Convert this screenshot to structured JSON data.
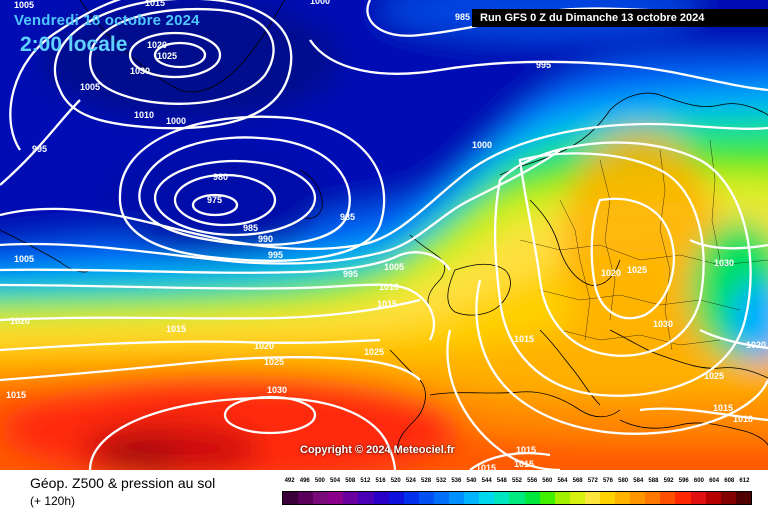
{
  "header": {
    "date": "Vendredi 18 octobre 2024",
    "local_time": "2:00 locale",
    "run_info": "Run GFS 0 Z du Dimanche 13 octobre 2024"
  },
  "copyright": "Copyright © 2024 Meteociel.fr",
  "legend": {
    "title": "Géop. Z500 & pression au sol",
    "subtitle": "(+ 120h)",
    "scale_values": [
      "492",
      "496",
      "500",
      "504",
      "508",
      "512",
      "516",
      "520",
      "524",
      "528",
      "532",
      "536",
      "540",
      "544",
      "548",
      "552",
      "556",
      "560",
      "564",
      "568",
      "572",
      "576",
      "580",
      "584",
      "588",
      "592",
      "596",
      "600",
      "604",
      "608",
      "612"
    ],
    "scale_colors": [
      "#3a003a",
      "#5a005a",
      "#7a0a7a",
      "#8a008a",
      "#6a00a0",
      "#4a00b4",
      "#2a00c8",
      "#1010dc",
      "#0030ec",
      "#0050f4",
      "#0070fa",
      "#0090ff",
      "#00b4ff",
      "#00d8ee",
      "#00e6c0",
      "#00ea80",
      "#00e83c",
      "#40f000",
      "#a0f000",
      "#d8f010",
      "#ffe63c",
      "#ffd200",
      "#ffb400",
      "#ff9600",
      "#ff7800",
      "#ff5000",
      "#ff2800",
      "#e01010",
      "#b40000",
      "#820000",
      "#500000"
    ]
  },
  "isobar_labels": [
    {
      "text": "1005"
    },
    {
      "text": "1015"
    },
    {
      "text": "1000"
    },
    {
      "text": "1020"
    },
    {
      "text": "1025"
    },
    {
      "text": "1030"
    },
    {
      "text": "1005"
    },
    {
      "text": "1010"
    },
    {
      "text": "1000"
    },
    {
      "text": "995"
    },
    {
      "text": "980"
    },
    {
      "text": "975"
    },
    {
      "text": "985"
    },
    {
      "text": "985"
    },
    {
      "text": "990"
    },
    {
      "text": "995"
    },
    {
      "text": "985"
    },
    {
      "text": "995"
    },
    {
      "text": "1000"
    },
    {
      "text": "1005"
    },
    {
      "text": "995"
    },
    {
      "text": "1010"
    },
    {
      "text": "1015"
    },
    {
      "text": "1005"
    },
    {
      "text": "1020"
    },
    {
      "text": "1015"
    },
    {
      "text": "1020"
    },
    {
      "text": "1025"
    },
    {
      "text": "1025"
    },
    {
      "text": "1015"
    },
    {
      "text": "1030"
    },
    {
      "text": "1015"
    },
    {
      "text": "1020"
    },
    {
      "text": "1025"
    },
    {
      "text": "1030"
    },
    {
      "text": "1030"
    },
    {
      "text": "1020"
    },
    {
      "text": "1025"
    },
    {
      "text": "1015"
    },
    {
      "text": "1010"
    },
    {
      "text": "1015"
    },
    {
      "text": "1015"
    },
    {
      "text": "1015"
    }
  ],
  "colors": {
    "low_pressure": "#0018c8",
    "high_pressure": "#ff2010",
    "isobars": "#ffffff",
    "coastline": "#000000"
  }
}
